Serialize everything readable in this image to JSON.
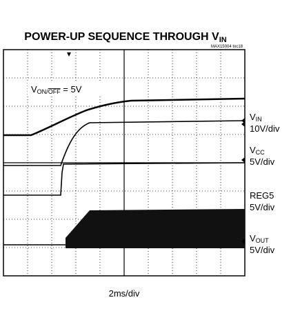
{
  "title": {
    "main": "POWER-UP SEQUENCE THROUGH V",
    "sub": "IN"
  },
  "note": "MAX15004 toc18",
  "annotation": {
    "main": "V",
    "sub1": "ON/",
    "sub2": "OFF",
    "rest": " = 5V"
  },
  "traces": [
    {
      "name": "V",
      "sub": "IN",
      "scale": "10V/div"
    },
    {
      "name": "V",
      "sub": "CC",
      "scale": "5V/div"
    },
    {
      "name": "REG5",
      "sub": "",
      "scale": "5V/div"
    },
    {
      "name": "V",
      "sub": "OUT",
      "scale": "5V/div"
    }
  ],
  "timebase": "2ms/div"
}
